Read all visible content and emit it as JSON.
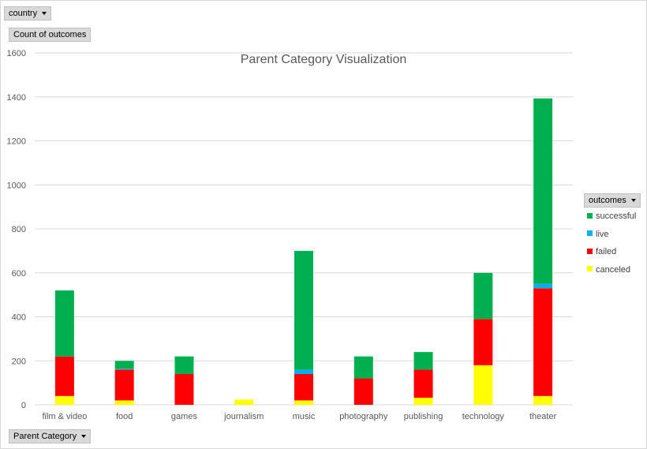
{
  "filters": {
    "report_filter": "country",
    "values_field": "Count of outcomes",
    "legend_field": "outcomes",
    "axis_field": "Parent Category"
  },
  "icons": {
    "dropdown": "dropdown-caret-icon"
  },
  "chart_data": {
    "type": "bar",
    "stacked": true,
    "title": "Parent Category Visualization",
    "xlabel": "",
    "ylabel": "",
    "ylim": [
      0,
      1600
    ],
    "yticks": [
      0,
      200,
      400,
      600,
      800,
      1000,
      1200,
      1400,
      1600
    ],
    "grid": true,
    "legend_position": "right",
    "categories": [
      "film & video",
      "food",
      "games",
      "journalism",
      "music",
      "photography",
      "publishing",
      "technology",
      "theater"
    ],
    "series": [
      {
        "name": "canceled",
        "color": "#ffff00",
        "values": [
          40,
          20,
          0,
          24,
          20,
          0,
          32,
          180,
          40
        ]
      },
      {
        "name": "failed",
        "color": "#ff0000",
        "values": [
          180,
          140,
          140,
          0,
          120,
          120,
          128,
          210,
          490
        ]
      },
      {
        "name": "live",
        "color": "#00b0f0",
        "values": [
          0,
          4,
          0,
          0,
          20,
          0,
          0,
          0,
          20
        ]
      },
      {
        "name": "successful",
        "color": "#00b050",
        "values": [
          300,
          36,
          80,
          0,
          540,
          100,
          80,
          210,
          843
        ]
      }
    ],
    "legend_order": [
      "successful",
      "live",
      "failed",
      "canceled"
    ]
  }
}
